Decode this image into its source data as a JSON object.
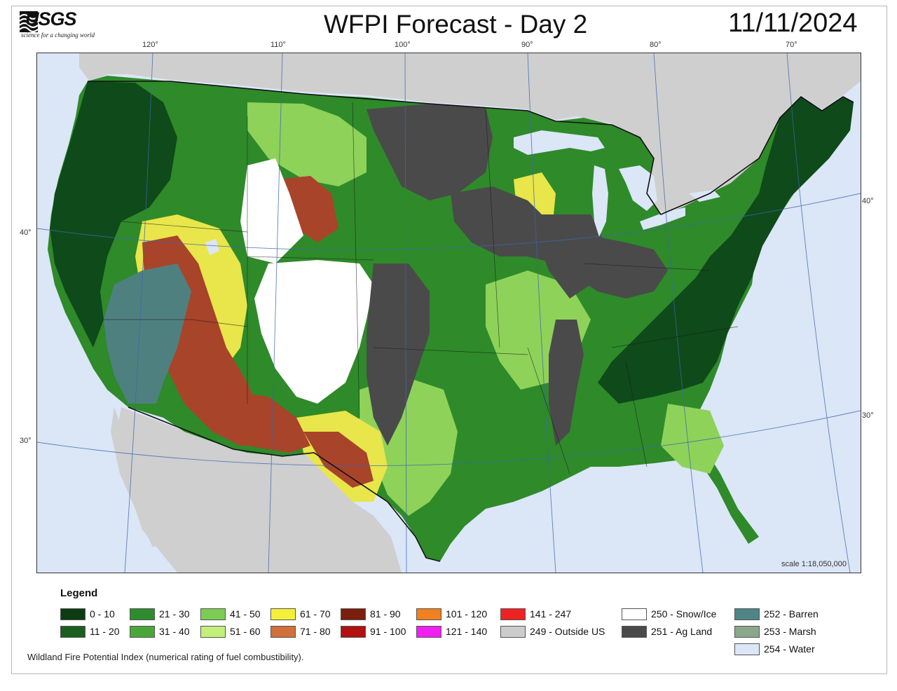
{
  "header": {
    "logo_text": "USGS",
    "logo_tagline": "science for a changing world",
    "title": "WFPI Forecast - Day 2",
    "date": "11/11/2024"
  },
  "map": {
    "lon_labels": [
      "120°",
      "110°",
      "100°",
      "90°",
      "80°",
      "70°"
    ],
    "lat_labels": [
      "40°",
      "30°",
      "40°",
      "30°"
    ],
    "scale": "scale 1:18,050,000",
    "colors": {
      "water": "#dbe6f7",
      "outside_us": "#d0d0d0",
      "dark_green": "#0f4a1a",
      "green": "#2f8a2a",
      "light_green": "#8ed25a",
      "yellow": "#e8e64a",
      "brown": "#a8442a",
      "barren": "#4f8080",
      "ag_land": "#4a4a4a",
      "snow": "#ffffff"
    }
  },
  "legend": {
    "title": "Legend",
    "items": [
      {
        "label": "0 - 10",
        "color": "#0d3b12"
      },
      {
        "label": "11 - 20",
        "color": "#1b5e20"
      },
      {
        "label": "21 - 30",
        "color": "#2e8b2e"
      },
      {
        "label": "31 - 40",
        "color": "#4aa63a"
      },
      {
        "label": "41 - 50",
        "color": "#7ccc54"
      },
      {
        "label": "51 - 60",
        "color": "#c2f07a"
      },
      {
        "label": "61 - 70",
        "color": "#f4f03a"
      },
      {
        "label": "71 - 80",
        "color": "#d0703a"
      },
      {
        "label": "81 - 90",
        "color": "#7a1e0e"
      },
      {
        "label": "91 - 100",
        "color": "#b01010"
      },
      {
        "label": "101 - 120",
        "color": "#f08020"
      },
      {
        "label": "121 - 140",
        "color": "#f020f0"
      },
      {
        "label": "141 - 247",
        "color": "#ee2222"
      },
      {
        "label": "249 - Outside US",
        "color": "#cccccc"
      },
      {
        "label": "250 - Snow/Ice",
        "color": "#ffffff"
      },
      {
        "label": "251 - Ag Land",
        "color": "#4a4a4a"
      },
      {
        "label": "252 - Barren",
        "color": "#4f8585"
      },
      {
        "label": "253 - Marsh",
        "color": "#8aa78a"
      },
      {
        "label": "254 - Water",
        "color": "#dbe6f7"
      }
    ],
    "caption": "Wildland Fire Potential Index (numerical rating of fuel combustibility)."
  }
}
